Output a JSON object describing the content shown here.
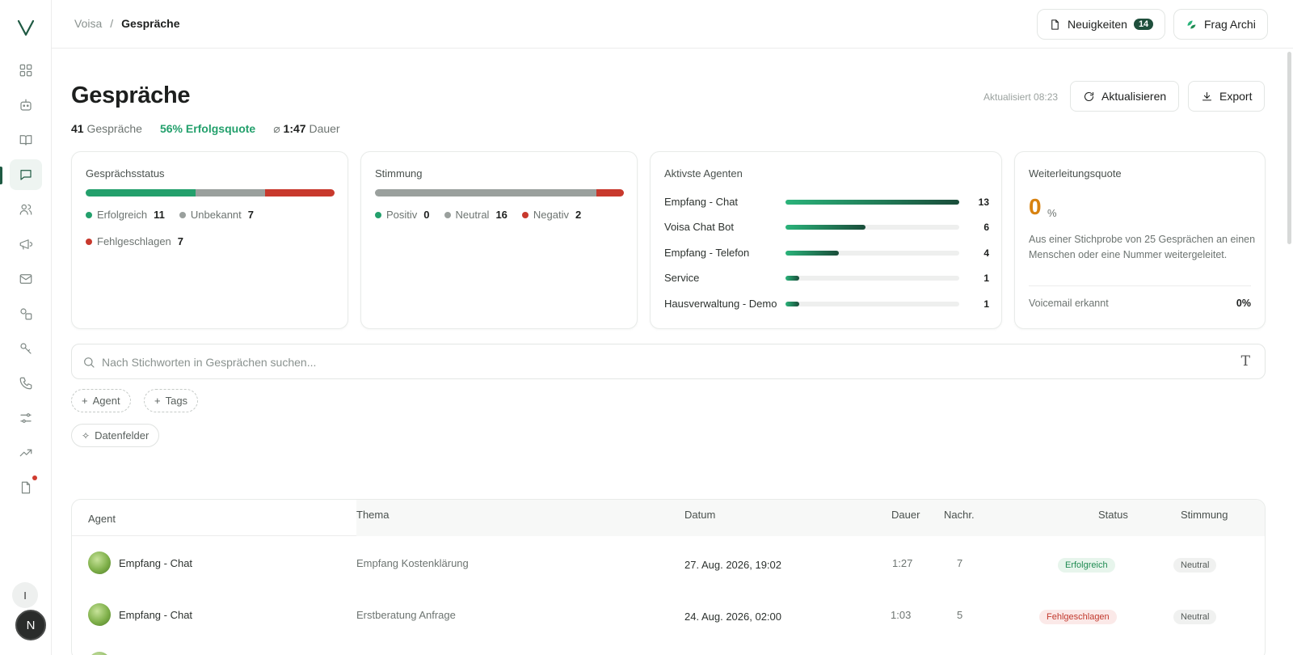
{
  "breadcrumb": {
    "root": "Voisa",
    "separator": "/",
    "current": "Gespräche"
  },
  "header": {
    "news_label": "Neuigkeiten",
    "news_count": "14",
    "archi_label": "Frag Archi"
  },
  "page": {
    "title": "Gespräche",
    "summary": {
      "count": "41",
      "count_label": "Gespräche",
      "success_rate": "56% Erfolgsquote",
      "avg_prefix": "⌀",
      "avg_duration": "1:47",
      "avg_label": "Dauer"
    },
    "updated": "Aktualisiert 08:23",
    "refresh_label": "Aktualisieren",
    "export_label": "Export"
  },
  "colors": {
    "success": "#23a06c",
    "neutral": "#9aa09d",
    "failed": "#c8392d",
    "accent": "#1f5a43",
    "warning": "#d88210"
  },
  "status_card": {
    "title": "Gesprächsstatus",
    "segments": [
      {
        "label": "Erfolgreich",
        "value": 11,
        "color": "#23a06c"
      },
      {
        "label": "Unbekannt",
        "value": 7,
        "color": "#9aa09d"
      },
      {
        "label": "Fehlgeschlagen",
        "value": 7,
        "color": "#c8392d"
      }
    ]
  },
  "sentiment_card": {
    "title": "Stimmung",
    "segments": [
      {
        "label": "Positiv",
        "value": 0,
        "color": "#23a06c"
      },
      {
        "label": "Neutral",
        "value": 16,
        "color": "#9aa09d"
      },
      {
        "label": "Negativ",
        "value": 2,
        "color": "#c8392d"
      }
    ]
  },
  "agents_card": {
    "title": "Aktivste Agenten",
    "max": 13,
    "agents": [
      {
        "name": "Empfang - Chat",
        "value": 13
      },
      {
        "name": "Voisa Chat Bot",
        "value": 6
      },
      {
        "name": "Empfang - Telefon",
        "value": 4
      },
      {
        "name": "Service",
        "value": 1
      },
      {
        "name": "Hausverwaltung - Demo",
        "value": 1
      }
    ]
  },
  "forward_card": {
    "title": "Weiterleitungsquote",
    "value": "0",
    "unit": "%",
    "description": "Aus einer Stichprobe von 25 Gesprächen an einen Menschen oder eine Nummer weitergeleitet.",
    "voicemail_label": "Voicemail erkannt",
    "voicemail_value": "0%"
  },
  "search": {
    "placeholder": "Nach Stichworten in Gesprächen suchen..."
  },
  "filters": {
    "agent": "Agent",
    "tags": "Tags",
    "datafields": "Datenfelder"
  },
  "table": {
    "columns": {
      "agent": "Agent",
      "topic": "Thema",
      "date": "Datum",
      "duration": "Dauer",
      "messages": "Nachr.",
      "status": "Status",
      "sentiment": "Stimmung"
    },
    "rows": [
      {
        "agent": "Empfang - Chat",
        "topic": "Empfang Kostenklärung",
        "date": "27. Aug. 2026, 19:02",
        "duration": "1:27",
        "messages": "7",
        "status": "Erfolgreich",
        "status_kind": "ok",
        "sentiment": "Neutral"
      },
      {
        "agent": "Empfang - Chat",
        "topic": "Erstberatung Anfrage",
        "date": "24. Aug. 2026, 02:00",
        "duration": "1:03",
        "messages": "5",
        "status": "Fehlgeschlagen",
        "status_kind": "fail",
        "sentiment": "Neutral"
      }
    ]
  },
  "sidebar": {
    "items": [
      {
        "icon": "grid-icon"
      },
      {
        "icon": "bot-icon"
      },
      {
        "icon": "book-icon"
      },
      {
        "icon": "chat-icon",
        "active": true
      },
      {
        "icon": "users-icon"
      },
      {
        "icon": "megaphone-icon"
      },
      {
        "icon": "mail-icon"
      },
      {
        "icon": "shapes-icon"
      },
      {
        "icon": "key-icon"
      },
      {
        "icon": "phone-icon"
      },
      {
        "icon": "sliders-icon"
      },
      {
        "icon": "trend-icon"
      },
      {
        "icon": "document-icon",
        "dot": true
      }
    ],
    "user_initial_small": "I",
    "user_initial": "N"
  }
}
